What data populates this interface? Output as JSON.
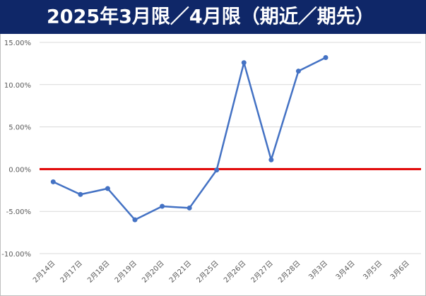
{
  "chart_data": {
    "type": "line",
    "title": "2025年3月限／4月限（期近／期先）",
    "categories": [
      "2月14日",
      "2月17日",
      "2月18日",
      "2月19日",
      "2月20日",
      "2月21日",
      "2月25日",
      "2月26日",
      "2月27日",
      "2月28日",
      "3月3日",
      "3月4日",
      "3月5日",
      "3月6日"
    ],
    "values": [
      -1.5,
      -3.0,
      -2.3,
      -6.0,
      -4.4,
      -4.6,
      -0.1,
      12.6,
      1.1,
      11.6,
      13.2,
      null,
      null,
      null
    ],
    "color": "#4472c4",
    "ylim": [
      -10,
      15
    ],
    "yticks": [
      {
        "value": -10,
        "label": "-10.00%"
      },
      {
        "value": -5,
        "label": "-5.00%"
      },
      {
        "value": 0,
        "label": "0.00%"
      },
      {
        "value": 5,
        "label": "5.00%"
      },
      {
        "value": 10,
        "label": "10.00%"
      },
      {
        "value": 15,
        "label": "15.00%"
      }
    ],
    "grid": true,
    "reference_line": {
      "value": 0,
      "color": "#e00000"
    }
  }
}
